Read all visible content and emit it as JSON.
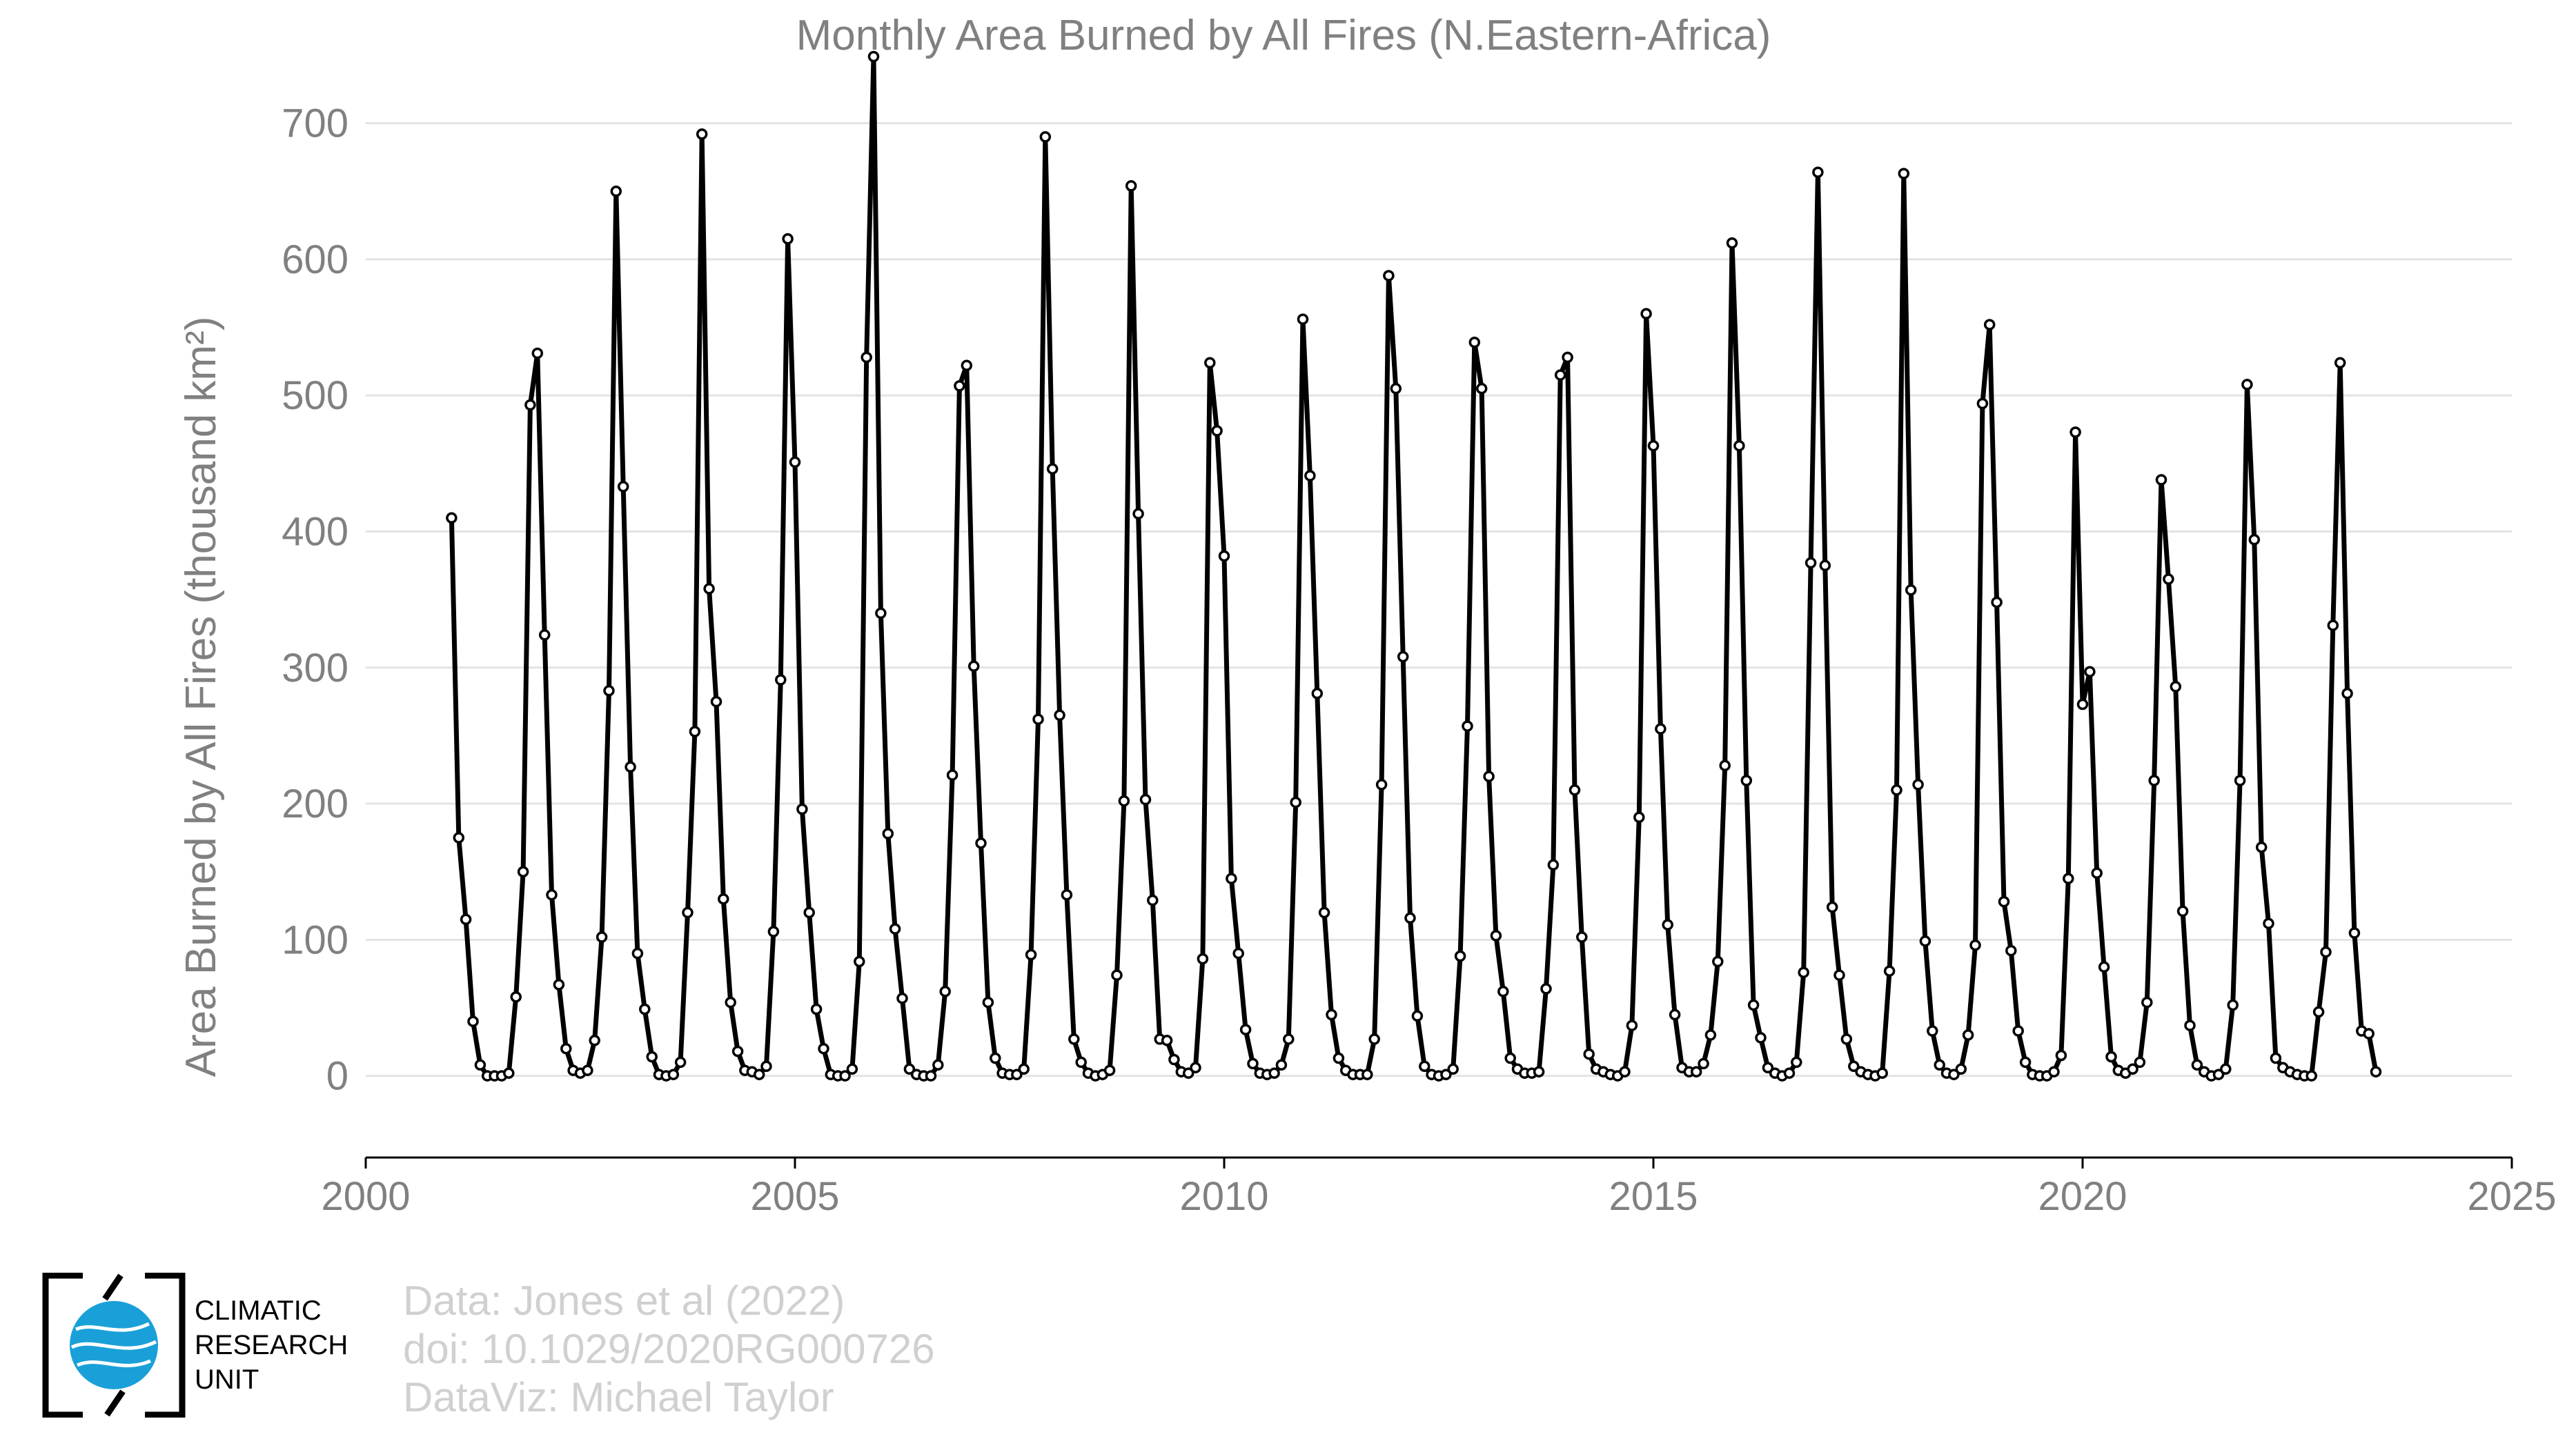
{
  "chart_data": {
    "type": "line",
    "title": "Monthly Area Burned by All Fires (N.Eastern-Africa)",
    "xlabel": "",
    "ylabel": "Area Burned by All Fires (thousand km²)",
    "xlim": [
      2000,
      2025
    ],
    "ylim": [
      -60,
      750
    ],
    "xticks": [
      2000,
      2005,
      2010,
      2015,
      2020,
      2025
    ],
    "yticks": [
      0,
      100,
      200,
      300,
      400,
      500,
      600,
      700
    ],
    "grid": "horizontal",
    "legend": "none",
    "series": [
      {
        "x_start": "2001-01",
        "frequency": "monthly",
        "values": [
          410,
          175,
          115,
          40,
          8,
          0,
          0,
          0,
          2,
          58,
          150,
          493,
          531,
          324,
          133,
          67,
          20,
          4,
          2,
          4,
          26,
          102,
          283,
          650,
          433,
          227,
          90,
          49,
          14,
          1,
          0,
          1,
          10,
          120,
          253,
          692,
          358,
          275,
          130,
          54,
          18,
          4,
          3,
          1,
          7,
          106,
          291,
          615,
          451,
          196,
          120,
          49,
          20,
          1,
          0,
          0,
          5,
          84,
          528,
          749,
          340,
          178,
          108,
          57,
          5,
          1,
          0,
          0,
          8,
          62,
          221,
          507,
          522,
          301,
          171,
          54,
          13,
          2,
          1,
          1,
          5,
          89,
          262,
          690,
          446,
          265,
          133,
          27,
          10,
          2,
          0,
          1,
          4,
          74,
          202,
          654,
          413,
          203,
          129,
          27,
          26,
          12,
          3,
          2,
          6,
          86,
          524,
          474,
          382,
          145,
          90,
          34,
          9,
          2,
          1,
          2,
          8,
          27,
          201,
          556,
          441,
          281,
          120,
          45,
          13,
          4,
          1,
          1,
          1,
          27,
          214,
          588,
          505,
          308,
          116,
          44,
          7,
          1,
          0,
          1,
          5,
          88,
          257,
          539,
          505,
          220,
          103,
          62,
          13,
          5,
          2,
          2,
          3,
          64,
          155,
          515,
          528,
          210,
          102,
          16,
          5,
          3,
          1,
          0,
          3,
          37,
          190,
          560,
          463,
          255,
          111,
          45,
          6,
          3,
          3,
          9,
          30,
          84,
          228,
          612,
          463,
          217,
          52,
          28,
          6,
          2,
          0,
          2,
          10,
          76,
          377,
          664,
          375,
          124,
          74,
          27,
          7,
          3,
          1,
          0,
          2,
          77,
          210,
          663,
          357,
          214,
          99,
          33,
          8,
          2,
          1,
          5,
          30,
          96,
          494,
          552,
          348,
          128,
          92,
          33,
          10,
          1,
          0,
          0,
          3,
          15,
          145,
          473,
          273,
          297,
          149,
          80,
          14,
          4,
          2,
          5,
          10,
          54,
          217,
          438,
          365,
          286,
          121,
          37,
          8,
          3,
          0,
          1,
          5,
          52,
          217,
          508,
          394,
          168,
          112,
          13,
          6,
          3,
          1,
          0,
          0,
          47,
          91,
          331,
          524,
          281,
          105,
          33,
          31,
          3
        ]
      }
    ]
  },
  "credits": {
    "data": "Data: Jones et al (2022)",
    "doi": "doi: 10.1029/2020RG000726",
    "dataviz": "DataViz: Michael Taylor"
  },
  "logo": {
    "lines": [
      "CLIMATIC",
      "RESEARCH",
      "UNIT"
    ],
    "colors": {
      "frame": "#000000",
      "globe": "#1aa0d8",
      "swirl": "#ffffff"
    }
  }
}
